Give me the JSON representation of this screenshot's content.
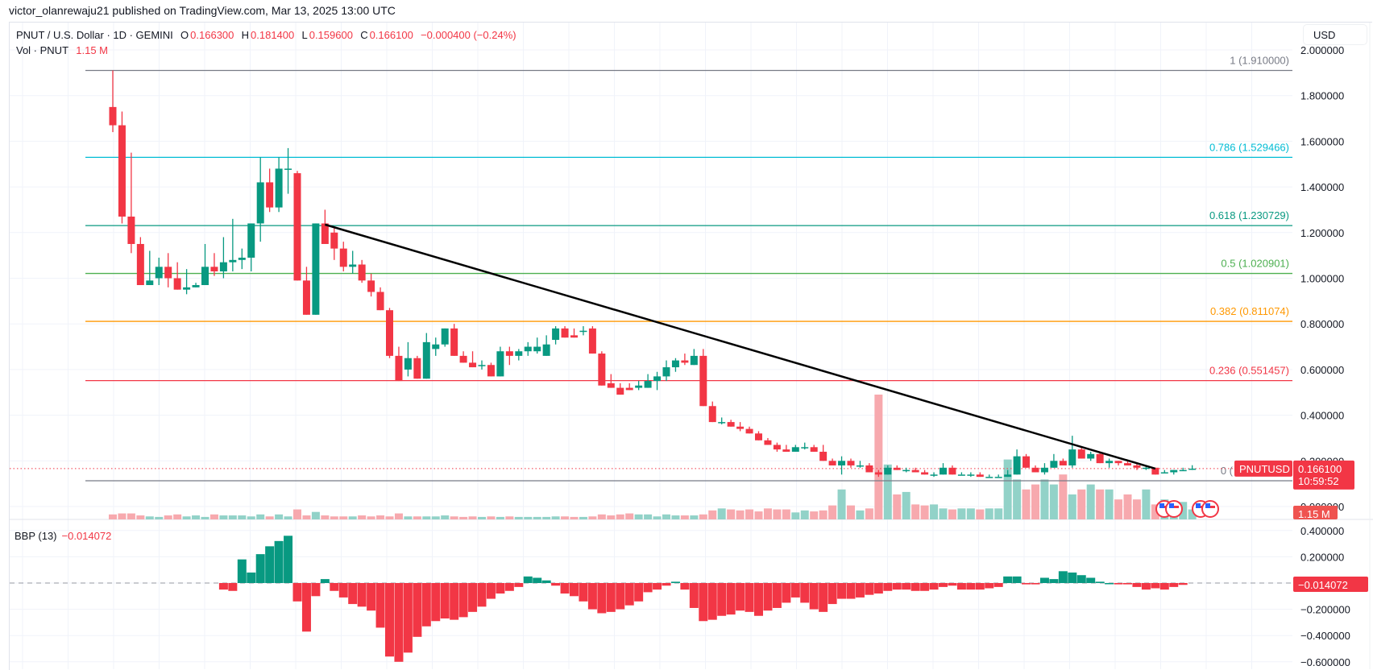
{
  "header": {
    "published": "victor_olanrewaju21 published on TradingView.com, Mar 13, 2025 13:00 UTC",
    "symbol": "PNUT / U.S. Dollar · 1D · GEMINI",
    "open_label": "O",
    "open": "0.166300",
    "high_label": "H",
    "high": "0.181400",
    "low_label": "L",
    "low": "0.159600",
    "close_label": "C",
    "close": "0.166100",
    "change": "−0.000400 (−0.24%)",
    "vol_label": "Vol · PNUT",
    "vol": "1.15 M",
    "currency": "USD"
  },
  "price_axis": {
    "ticks": [
      "2.000000",
      "1.800000",
      "1.600000",
      "1.400000",
      "1.200000",
      "1.000000",
      "0.800000",
      "0.600000",
      "0.400000",
      "0.200000",
      "0.000000"
    ],
    "last_price": "0.166100",
    "countdown": "10:59:52",
    "symbol_tag": "PNUTUSD",
    "volume_tag": "1.15 M"
  },
  "bbp": {
    "label": "BBP (13)",
    "value": "−0.014072",
    "ticks": [
      "0.400000",
      "0.200000",
      "−0.200000",
      "−0.400000",
      "−0.600000"
    ]
  },
  "colors": {
    "up": "#089981",
    "down": "#f23645",
    "up_vol": "#92d2c8",
    "down_vol": "#f7a9ae",
    "trendline": "#000000",
    "grid": "#f0f3fa"
  },
  "chart_data": {
    "type": "candlestick",
    "title": "PNUT / U.S. Dollar · 1D · GEMINI",
    "ylabel": "USD",
    "ylim": [
      0,
      2.0
    ],
    "fibonacci": [
      {
        "level": "1",
        "price": 1.91,
        "label": "1 (1.910000)",
        "color": "#787b86"
      },
      {
        "level": "0.786",
        "price": 1.529466,
        "label": "0.786 (1.529466)",
        "color": "#00bcd4"
      },
      {
        "level": "0.618",
        "price": 1.230729,
        "label": "0.618 (1.230729)",
        "color": "#089981"
      },
      {
        "level": "0.5",
        "price": 1.020901,
        "label": "0.5 (1.020901)",
        "color": "#4caf50"
      },
      {
        "level": "0.382",
        "price": 0.811074,
        "label": "0.382 (0.811074)",
        "color": "#ff9800"
      },
      {
        "level": "0.236",
        "price": 0.551457,
        "label": "0.236 (0.551457)",
        "color": "#f23645"
      },
      {
        "level": "0",
        "price": 0.13,
        "label": "0 (",
        "color": "#787b86"
      }
    ],
    "trendline": {
      "from": {
        "index": 23,
        "price": 1.235
      },
      "to": {
        "index": 113,
        "price": 0.166
      }
    },
    "candles": [
      [
        1.75,
        1.91,
        1.64,
        1.67
      ],
      [
        1.67,
        1.73,
        1.24,
        1.27
      ],
      [
        1.27,
        1.55,
        1.11,
        1.15
      ],
      [
        1.15,
        1.18,
        0.99,
        0.97
      ],
      [
        0.97,
        1.12,
        1.02,
        0.99
      ],
      [
        1.0,
        1.09,
        0.97,
        1.05
      ],
      [
        1.05,
        1.11,
        0.96,
        1.0
      ],
      [
        1.0,
        1.07,
        0.96,
        0.95
      ],
      [
        0.95,
        1.04,
        0.93,
        0.96
      ],
      [
        0.96,
        0.98,
        1.15,
        0.97
      ],
      [
        0.97,
        1.15,
        1.11,
        1.05
      ],
      [
        1.05,
        1.11,
        1.01,
        1.03
      ],
      [
        1.03,
        1.18,
        1.0,
        1.07
      ],
      [
        1.07,
        1.26,
        1.03,
        1.08
      ],
      [
        1.08,
        1.13,
        1.04,
        1.09
      ],
      [
        1.09,
        1.2,
        1.03,
        1.24
      ],
      [
        1.24,
        1.53,
        1.16,
        1.42
      ],
      [
        1.42,
        1.48,
        1.29,
        1.31
      ],
      [
        1.31,
        1.53,
        1.29,
        1.48
      ],
      [
        1.48,
        1.57,
        1.37,
        1.48
      ],
      [
        1.46,
        1.47,
        0.99,
        0.99
      ],
      [
        0.99,
        1.05,
        0.89,
        0.84
      ],
      [
        0.84,
        1.21,
        0.98,
        1.24
      ],
      [
        1.24,
        1.3,
        1.19,
        1.15
      ],
      [
        1.2,
        1.22,
        1.08,
        1.13
      ],
      [
        1.13,
        1.16,
        1.03,
        1.05
      ],
      [
        1.05,
        1.12,
        1.02,
        1.06
      ],
      [
        1.06,
        1.08,
        0.98,
        0.99
      ],
      [
        0.99,
        1.02,
        0.92,
        0.94
      ],
      [
        0.94,
        0.96,
        0.86,
        0.86
      ],
      [
        0.86,
        0.87,
        0.65,
        0.66
      ],
      [
        0.66,
        0.7,
        0.56,
        0.55
      ],
      [
        0.6,
        0.72,
        0.57,
        0.65
      ],
      [
        0.65,
        0.66,
        0.58,
        0.56
      ],
      [
        0.56,
        0.76,
        0.58,
        0.72
      ],
      [
        0.69,
        0.74,
        0.66,
        0.71
      ],
      [
        0.71,
        0.78,
        0.7,
        0.78
      ],
      [
        0.78,
        0.8,
        0.68,
        0.66
      ],
      [
        0.66,
        0.68,
        0.64,
        0.63
      ],
      [
        0.63,
        0.68,
        0.61,
        0.61
      ],
      [
        0.62,
        0.64,
        0.6,
        0.62
      ],
      [
        0.62,
        0.63,
        0.59,
        0.57
      ],
      [
        0.57,
        0.7,
        0.57,
        0.68
      ],
      [
        0.68,
        0.7,
        0.62,
        0.66
      ],
      [
        0.66,
        0.69,
        0.64,
        0.68
      ],
      [
        0.68,
        0.72,
        0.66,
        0.7
      ],
      [
        0.68,
        0.74,
        0.67,
        0.7
      ],
      [
        0.66,
        0.75,
        0.66,
        0.71
      ],
      [
        0.73,
        0.79,
        0.71,
        0.78
      ],
      [
        0.78,
        0.79,
        0.75,
        0.74
      ],
      [
        0.75,
        0.78,
        0.75,
        0.74
      ],
      [
        0.77,
        0.79,
        0.75,
        0.77
      ],
      [
        0.78,
        0.79,
        0.68,
        0.67
      ],
      [
        0.67,
        0.68,
        0.55,
        0.53
      ],
      [
        0.54,
        0.58,
        0.52,
        0.52
      ],
      [
        0.52,
        0.54,
        0.51,
        0.49
      ],
      [
        0.52,
        0.54,
        0.51,
        0.51
      ],
      [
        0.52,
        0.55,
        0.51,
        0.53
      ],
      [
        0.52,
        0.58,
        0.52,
        0.55
      ],
      [
        0.55,
        0.59,
        0.51,
        0.57
      ],
      [
        0.57,
        0.64,
        0.55,
        0.61
      ],
      [
        0.61,
        0.65,
        0.59,
        0.64
      ],
      [
        0.64,
        0.67,
        0.62,
        0.63
      ],
      [
        0.62,
        0.69,
        0.62,
        0.66
      ],
      [
        0.66,
        0.69,
        0.49,
        0.44
      ],
      [
        0.44,
        0.46,
        0.4,
        0.37
      ],
      [
        0.37,
        0.39,
        0.36,
        0.37
      ],
      [
        0.37,
        0.38,
        0.35,
        0.35
      ],
      [
        0.35,
        0.37,
        0.33,
        0.34
      ],
      [
        0.34,
        0.35,
        0.32,
        0.32
      ],
      [
        0.32,
        0.33,
        0.3,
        0.29
      ],
      [
        0.29,
        0.3,
        0.27,
        0.27
      ],
      [
        0.27,
        0.28,
        0.24,
        0.25
      ],
      [
        0.25,
        0.27,
        0.24,
        0.24
      ],
      [
        0.24,
        0.27,
        0.24,
        0.26
      ],
      [
        0.26,
        0.28,
        0.25,
        0.26
      ],
      [
        0.26,
        0.27,
        0.24,
        0.24
      ],
      [
        0.24,
        0.27,
        0.21,
        0.2
      ],
      [
        0.2,
        0.21,
        0.18,
        0.18
      ],
      [
        0.18,
        0.22,
        0.14,
        0.2
      ],
      [
        0.2,
        0.21,
        0.17,
        0.18
      ],
      [
        0.18,
        0.2,
        0.17,
        0.18
      ],
      [
        0.18,
        0.19,
        0.16,
        0.15
      ],
      [
        0.15,
        0.16,
        0.13,
        0.14
      ],
      [
        0.14,
        0.18,
        0.14,
        0.17
      ],
      [
        0.17,
        0.18,
        0.16,
        0.16
      ],
      [
        0.16,
        0.17,
        0.15,
        0.16
      ],
      [
        0.16,
        0.17,
        0.15,
        0.15
      ],
      [
        0.15,
        0.16,
        0.14,
        0.14
      ],
      [
        0.14,
        0.15,
        0.13,
        0.14
      ],
      [
        0.14,
        0.19,
        0.14,
        0.17
      ],
      [
        0.17,
        0.18,
        0.16,
        0.14
      ],
      [
        0.14,
        0.15,
        0.14,
        0.14
      ],
      [
        0.14,
        0.15,
        0.13,
        0.14
      ],
      [
        0.14,
        0.15,
        0.13,
        0.13
      ],
      [
        0.13,
        0.14,
        0.13,
        0.13
      ],
      [
        0.13,
        0.14,
        0.13,
        0.13
      ],
      [
        0.13,
        0.16,
        0.13,
        0.14
      ],
      [
        0.14,
        0.25,
        0.14,
        0.22
      ],
      [
        0.22,
        0.23,
        0.17,
        0.17
      ],
      [
        0.17,
        0.18,
        0.15,
        0.15
      ],
      [
        0.15,
        0.19,
        0.14,
        0.17
      ],
      [
        0.17,
        0.23,
        0.17,
        0.2
      ],
      [
        0.2,
        0.21,
        0.18,
        0.18
      ],
      [
        0.18,
        0.31,
        0.17,
        0.25
      ],
      [
        0.25,
        0.26,
        0.21,
        0.21
      ],
      [
        0.21,
        0.24,
        0.2,
        0.23
      ],
      [
        0.23,
        0.24,
        0.19,
        0.19
      ],
      [
        0.19,
        0.21,
        0.17,
        0.2
      ],
      [
        0.2,
        0.2,
        0.18,
        0.19
      ],
      [
        0.19,
        0.2,
        0.18,
        0.18
      ],
      [
        0.18,
        0.19,
        0.16,
        0.17
      ],
      [
        0.17,
        0.18,
        0.16,
        0.17
      ],
      [
        0.17,
        0.17,
        0.14,
        0.14
      ],
      [
        0.15,
        0.16,
        0.15,
        0.15
      ],
      [
        0.15,
        0.16,
        0.14,
        0.16
      ],
      [
        0.16,
        0.17,
        0.16,
        0.16
      ],
      [
        0.166,
        0.181,
        0.16,
        0.166
      ]
    ],
    "volume": [
      0.1,
      0.12,
      0.12,
      0.08,
      0.06,
      0.05,
      0.08,
      0.1,
      0.06,
      0.08,
      0.05,
      0.1,
      0.08,
      0.08,
      0.08,
      0.06,
      0.1,
      0.06,
      0.1,
      0.06,
      0.2,
      0.08,
      0.15,
      0.08,
      0.06,
      0.06,
      0.06,
      0.08,
      0.06,
      0.08,
      0.06,
      0.12,
      0.06,
      0.06,
      0.06,
      0.06,
      0.08,
      0.06,
      0.05,
      0.06,
      0.05,
      0.06,
      0.05,
      0.06,
      0.05,
      0.05,
      0.05,
      0.05,
      0.06,
      0.06,
      0.05,
      0.05,
      0.06,
      0.1,
      0.08,
      0.1,
      0.12,
      0.1,
      0.1,
      0.06,
      0.1,
      0.08,
      0.08,
      0.08,
      0.1,
      0.18,
      0.22,
      0.2,
      0.18,
      0.2,
      0.16,
      0.22,
      0.2,
      0.2,
      0.14,
      0.18,
      0.16,
      0.18,
      0.28,
      0.6,
      0.28,
      0.18,
      0.22,
      2.5,
      1.1,
      0.5,
      0.55,
      0.3,
      0.28,
      0.3,
      0.22,
      0.2,
      0.22,
      0.22,
      0.2,
      0.22,
      0.22,
      1.2,
      0.8,
      0.6,
      0.7,
      0.8,
      0.7,
      0.9,
      0.5,
      0.6,
      0.7,
      0.6,
      0.6,
      0.4,
      0.5,
      0.4,
      0.6,
      0.3,
      0.4,
      0.35,
      0.35,
      0.2
    ],
    "bbp_values": [
      null,
      null,
      null,
      null,
      null,
      null,
      null,
      null,
      null,
      null,
      null,
      null,
      -0.05,
      -0.06,
      0.18,
      0.08,
      0.22,
      0.28,
      0.32,
      0.36,
      -0.14,
      -0.37,
      -0.1,
      0.03,
      -0.06,
      -0.11,
      -0.16,
      -0.18,
      -0.21,
      -0.34,
      -0.56,
      -0.6,
      -0.53,
      -0.41,
      -0.33,
      -0.29,
      -0.27,
      -0.28,
      -0.26,
      -0.22,
      -0.18,
      -0.12,
      -0.08,
      -0.06,
      -0.03,
      0.05,
      0.04,
      0.02,
      -0.02,
      -0.08,
      -0.1,
      -0.14,
      -0.2,
      -0.23,
      -0.22,
      -0.2,
      -0.17,
      -0.14,
      -0.07,
      -0.05,
      -0.02,
      0.01,
      -0.05,
      -0.19,
      -0.29,
      -0.28,
      -0.25,
      -0.24,
      -0.21,
      -0.22,
      -0.25,
      -0.21,
      -0.19,
      -0.15,
      -0.11,
      -0.15,
      -0.2,
      -0.22,
      -0.16,
      -0.12,
      -0.12,
      -0.11,
      -0.09,
      -0.08,
      -0.06,
      -0.05,
      -0.05,
      -0.06,
      -0.06,
      -0.05,
      -0.03,
      -0.02,
      -0.05,
      -0.05,
      -0.05,
      -0.04,
      -0.03,
      0.05,
      0.05,
      -0.01,
      -0.01,
      0.04,
      0.03,
      0.09,
      0.08,
      0.06,
      0.04,
      0.01,
      0.0,
      -0.01,
      -0.01,
      -0.03,
      -0.05,
      -0.04,
      -0.05,
      -0.03,
      -0.014
    ]
  }
}
